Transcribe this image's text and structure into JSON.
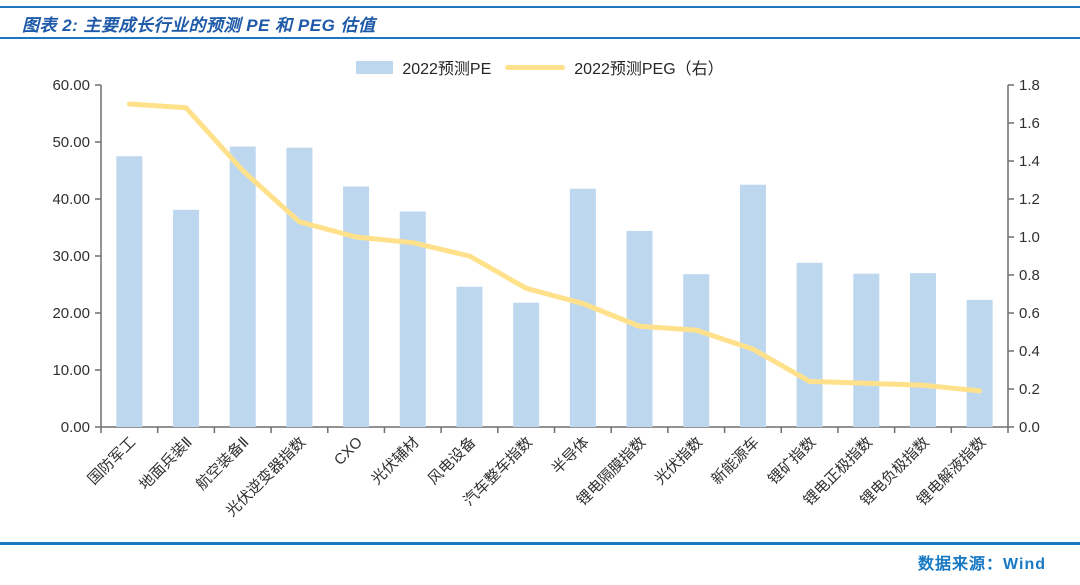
{
  "header": {
    "title": "图表 2: 主要成长行业的预测 PE 和 PEG 估值"
  },
  "footer": {
    "source": "数据来源：Wind"
  },
  "colors": {
    "accent_rule_blue": "#1c77c3",
    "title_blue": "#1e5aa8",
    "source_blue": "#1778c4",
    "bar_fill": "#bdd7ee",
    "line_stroke": "#ffe18c",
    "axis_line": "#6e6e6e",
    "tick_text": "#303030"
  },
  "chart_data": {
    "type": "combo_bar_line",
    "categories": [
      "国防军工",
      "地面兵装Ⅱ",
      "航空装备Ⅱ",
      "光伏逆变器指数",
      "CXO",
      "光伏辅材",
      "风电设备",
      "汽车整车指数",
      "半导体",
      "锂电隔膜指数",
      "光伏指数",
      "新能源车",
      "锂矿指数",
      "锂电正极指数",
      "锂电负极指数",
      "锂电解液指数"
    ],
    "series": [
      {
        "name": "2022预测PE",
        "type": "bar",
        "axis": "left",
        "values": [
          47.5,
          38.1,
          49.2,
          49.0,
          42.2,
          37.8,
          24.6,
          21.8,
          41.8,
          34.4,
          26.8,
          42.5,
          28.8,
          26.9,
          27.0,
          22.3
        ]
      },
      {
        "name": "2022预测PEG（右）",
        "type": "line",
        "axis": "right",
        "values": [
          1.7,
          1.68,
          1.35,
          1.08,
          1.0,
          0.97,
          0.9,
          0.73,
          0.65,
          0.53,
          0.51,
          0.41,
          0.24,
          0.23,
          0.22,
          0.19
        ]
      }
    ],
    "left_axis": {
      "min": 0,
      "max": 60,
      "step": 10,
      "ticks": [
        "0.00",
        "10.00",
        "20.00",
        "30.00",
        "40.00",
        "50.00",
        "60.00"
      ]
    },
    "right_axis": {
      "min": 0,
      "max": 1.8,
      "step": 0.2,
      "ticks": [
        "0.0",
        "0.2",
        "0.4",
        "0.6",
        "0.8",
        "1.0",
        "1.2",
        "1.4",
        "1.6",
        "1.8"
      ]
    },
    "legend_position": "top-center",
    "grid": false,
    "x_labels_rotation_deg": -45
  }
}
